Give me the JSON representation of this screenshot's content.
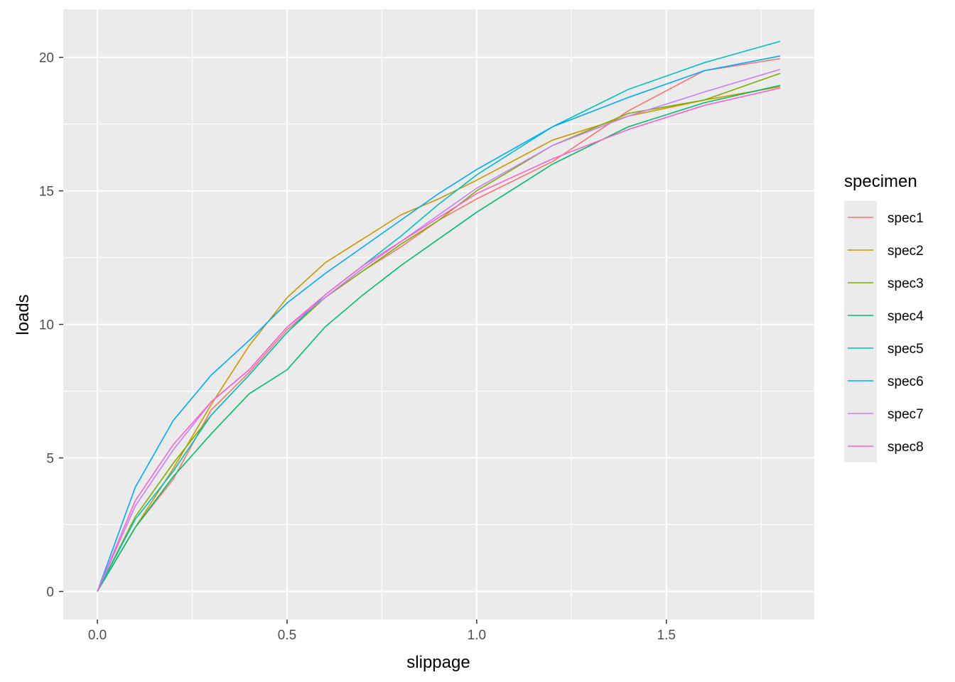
{
  "chart_data": {
    "type": "line",
    "xlabel": "slippage",
    "ylabel": "loads",
    "xlim": [
      -0.09,
      1.89
    ],
    "ylim": [
      -1.05,
      21.8
    ],
    "x_ticks": [
      0.0,
      0.5,
      1.0,
      1.5
    ],
    "x_tick_labels": [
      "0.0",
      "0.5",
      "1.0",
      "1.5"
    ],
    "y_ticks": [
      0,
      5,
      10,
      15,
      20
    ],
    "y_tick_labels": [
      "0",
      "5",
      "10",
      "15",
      "20"
    ],
    "grid": true,
    "legend": {
      "title": "specimen",
      "placement": "right"
    },
    "x": [
      0.0,
      0.1,
      0.2,
      0.3,
      0.4,
      0.5,
      0.6,
      0.7,
      0.8,
      0.9,
      1.0,
      1.2,
      1.4,
      1.6,
      1.8
    ],
    "series": [
      {
        "name": "spec1",
        "color": "#F8766D",
        "values": [
          0,
          2.4,
          4.2,
          6.8,
          8.2,
          9.8,
          11.0,
          12.0,
          12.9,
          13.9,
          14.7,
          16.1,
          18.0,
          19.5,
          19.95
        ]
      },
      {
        "name": "spec2",
        "color": "#CD9600",
        "values": [
          0,
          2.4,
          4.6,
          7.0,
          9.2,
          11.0,
          12.3,
          13.2,
          14.1,
          14.7,
          15.4,
          16.9,
          17.8,
          18.4,
          18.9
        ]
      },
      {
        "name": "spec3",
        "color": "#7CAE00",
        "values": [
          0,
          2.8,
          4.8,
          6.6,
          8.1,
          9.7,
          11.0,
          12.0,
          13.0,
          13.9,
          15.0,
          16.7,
          17.9,
          18.4,
          19.4
        ]
      },
      {
        "name": "spec4",
        "color": "#00BE67",
        "values": [
          0,
          2.4,
          4.3,
          5.9,
          7.4,
          8.3,
          9.9,
          11.1,
          12.2,
          13.2,
          14.2,
          16.0,
          17.4,
          18.3,
          18.95
        ]
      },
      {
        "name": "spec5",
        "color": "#00BFC4",
        "values": [
          0,
          2.7,
          4.5,
          6.6,
          8.1,
          9.7,
          11.1,
          12.2,
          13.3,
          14.5,
          15.6,
          17.4,
          18.8,
          19.8,
          20.6
        ]
      },
      {
        "name": "spec6",
        "color": "#00A9FF",
        "values": [
          0,
          3.9,
          6.4,
          8.1,
          9.4,
          10.8,
          11.9,
          12.9,
          13.9,
          14.9,
          15.8,
          17.4,
          18.5,
          19.5,
          20.05
        ]
      },
      {
        "name": "spec7",
        "color": "#C77CFF",
        "values": [
          0,
          3.2,
          5.3,
          7.1,
          8.3,
          9.9,
          11.0,
          12.1,
          13.1,
          14.1,
          15.1,
          16.7,
          17.8,
          18.7,
          19.55
        ]
      },
      {
        "name": "spec8",
        "color": "#FF61CC",
        "values": [
          0,
          3.4,
          5.5,
          7.1,
          8.3,
          9.9,
          11.1,
          12.2,
          13.1,
          14.0,
          14.9,
          16.2,
          17.3,
          18.2,
          18.85
        ]
      }
    ]
  }
}
